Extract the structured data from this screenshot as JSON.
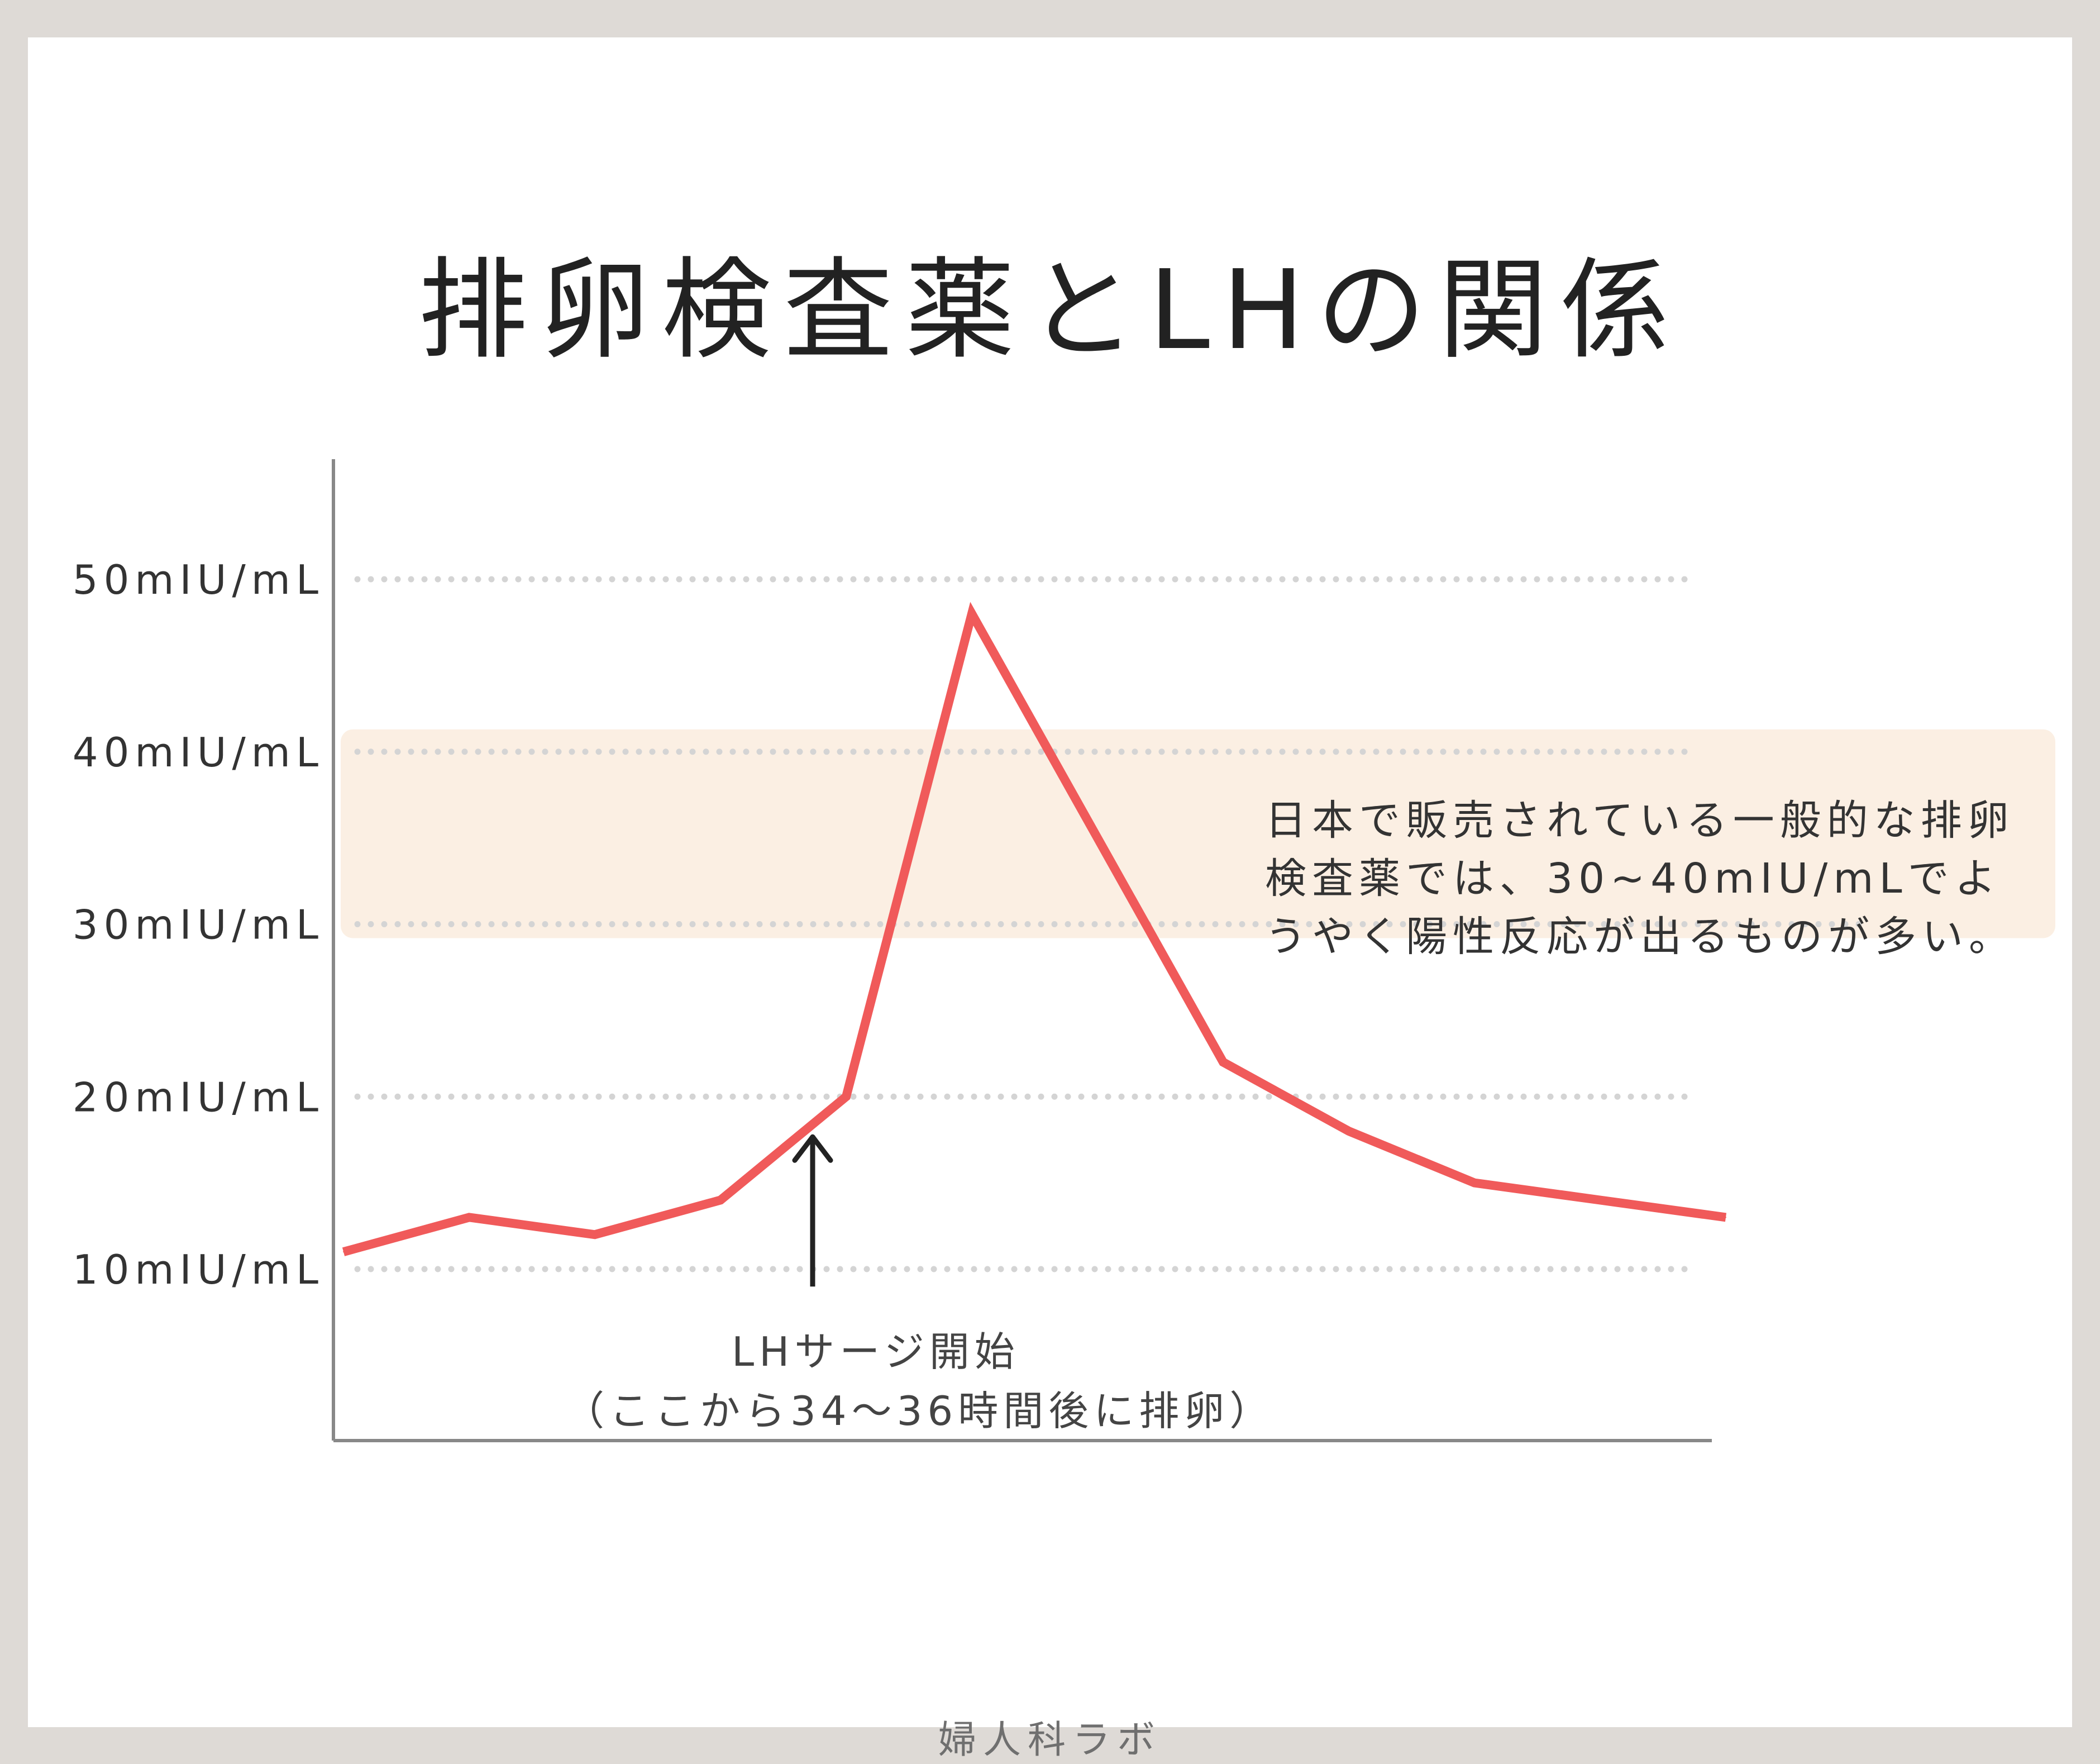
{
  "title": "排卵検査薬とLHの関係",
  "footer": "婦人科ラボ",
  "colors": {
    "background": "#dedad6",
    "line": "#f05a5a",
    "band": "#fbefe3",
    "axis": "#888888",
    "grid": "#d4d4d4",
    "arrow": "#222222"
  },
  "chart_data": {
    "type": "line",
    "title": "排卵検査薬とLHの関係",
    "xlabel": "",
    "ylabel": "",
    "grid": "dotted horizontal",
    "ylim": [
      0,
      55
    ],
    "y_ticks": [
      {
        "value": 10,
        "label": "10mIU/mL"
      },
      {
        "value": 20,
        "label": "20mIU/mL"
      },
      {
        "value": 30,
        "label": "30mIU/mL"
      },
      {
        "value": 40,
        "label": "40mIU/mL"
      },
      {
        "value": 50,
        "label": "50mIU/mL"
      }
    ],
    "series": [
      {
        "name": "",
        "y": [
          11,
          13,
          12,
          14,
          20,
          48,
          35,
          22,
          18,
          15,
          14,
          13
        ]
      }
    ],
    "highlight_band": {
      "from": 30,
      "to": 40
    },
    "annotations": {
      "band_note": [
        "日本で販売されている一般的な排卵",
        "検査薬では、30~40mIU/mLでよ",
        "うやく陽性反応が出るものが多い。"
      ],
      "surge_point_index": 4,
      "surge_label": [
        "LHサージ開始",
        "（ここから34～36時間後に排卵）"
      ]
    }
  }
}
